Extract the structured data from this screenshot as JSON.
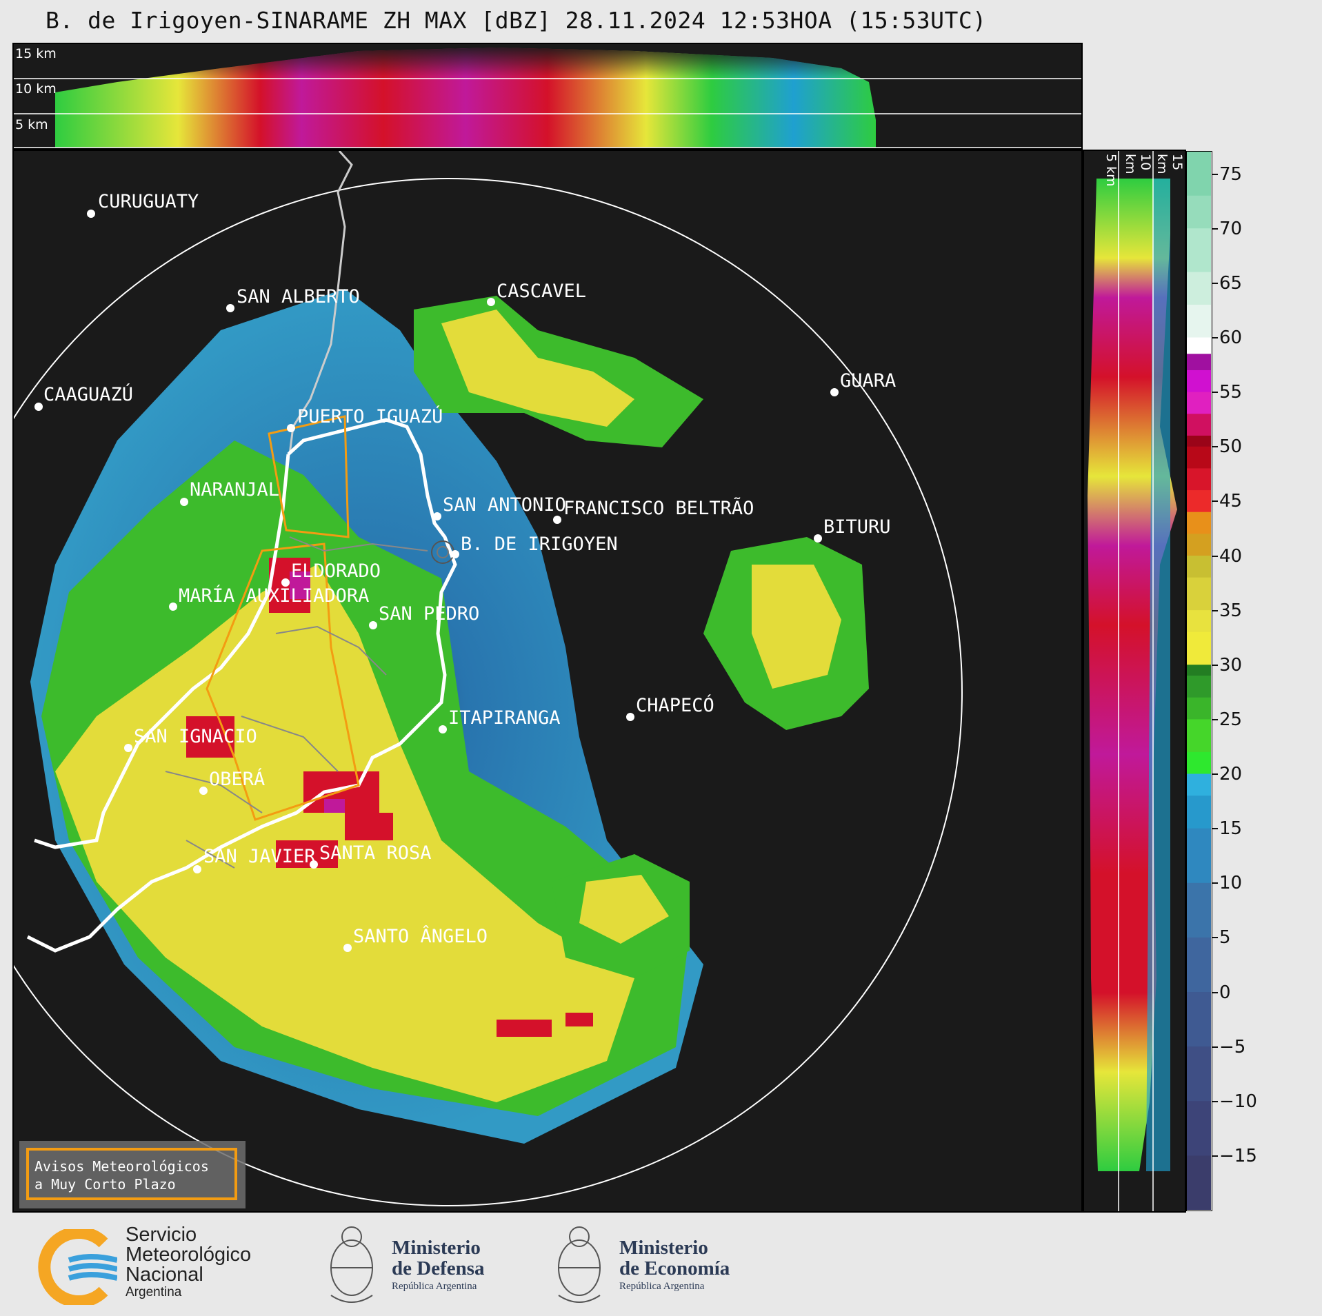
{
  "title": "B. de Irigoyen-SINARAME ZH MAX [dBZ] 28.11.2024 12:53HOA (15:53UTC)",
  "top_section": {
    "altitude_labels": [
      "15 km",
      "10 km",
      "5 km"
    ]
  },
  "right_section": {
    "altitude_labels": [
      "5 km",
      "10 km",
      "15 km"
    ]
  },
  "colorbar": {
    "ticks": [
      "75",
      "70",
      "65",
      "60",
      "55",
      "50",
      "45",
      "40",
      "35",
      "30",
      "25",
      "20",
      "15",
      "10",
      "5",
      "0",
      "−5",
      "−10",
      "−15"
    ],
    "range_dbz": [
      -20,
      77
    ]
  },
  "cities": [
    {
      "name": "CURUGUATY"
    },
    {
      "name": "SAN ALBERTO"
    },
    {
      "name": "CASCAVEL"
    },
    {
      "name": "CAAGUAZÚ"
    },
    {
      "name": "GUARA"
    },
    {
      "name": "PUERTO IGUAZÚ"
    },
    {
      "name": "NARANJAL"
    },
    {
      "name": "SAN ANTONIO"
    },
    {
      "name": "FRANCISCO BELTRÃO"
    },
    {
      "name": "BITURU"
    },
    {
      "name": "B. DE IRIGOYEN"
    },
    {
      "name": "ELDORADO"
    },
    {
      "name": "MARÍA AUXILIADORA"
    },
    {
      "name": "SAN PEDRO"
    },
    {
      "name": "CHAPECÓ"
    },
    {
      "name": "ITAPIRANGA"
    },
    {
      "name": "SAN IGNACIO"
    },
    {
      "name": "OBERÁ"
    },
    {
      "name": "SAN JAVIER"
    },
    {
      "name": "SANTA ROSA"
    },
    {
      "name": "SANTO ÂNGELO"
    }
  ],
  "avisos": {
    "line1": "Avisos Meteorológicos",
    "line2": "a Muy Corto Plazo"
  },
  "logos": {
    "smn": {
      "line1": "Servicio",
      "line2": "Meteorológico",
      "line3": "Nacional",
      "line4": "Argentina"
    },
    "defensa": {
      "line1": "Ministerio",
      "line2": "de Defensa",
      "line3": "República Argentina"
    },
    "economia": {
      "line1": "Ministerio",
      "line2": "de Economía",
      "line3": "República Argentina"
    }
  }
}
